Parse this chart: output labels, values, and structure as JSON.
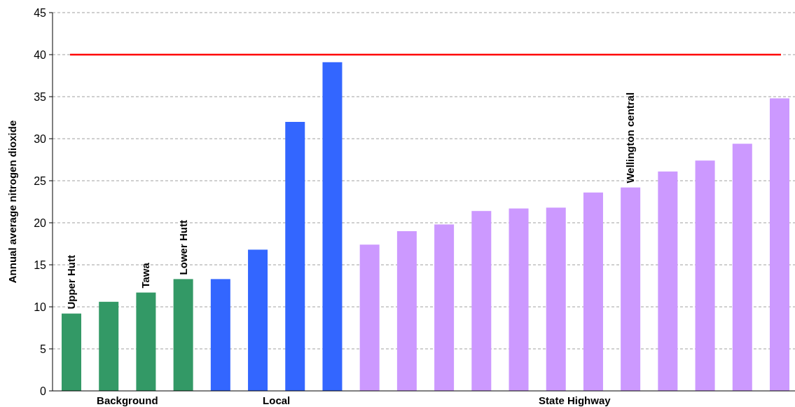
{
  "chart_data": {
    "type": "bar",
    "ylabel": "Annual average nitrogen dioxide",
    "categories": [
      "Upper Hutt",
      null,
      "Tawa",
      "Lower Hutt",
      null,
      null,
      null,
      null,
      null,
      null,
      null,
      null,
      null,
      null,
      null,
      "Wellington central",
      null,
      null,
      null,
      null
    ],
    "values": [
      9.2,
      10.6,
      11.7,
      13.3,
      13.3,
      16.8,
      32,
      39.1,
      17.4,
      19,
      19.8,
      21.4,
      21.7,
      21.8,
      23.6,
      24.2,
      26.1,
      27.4,
      29.4,
      34.8
    ],
    "colors": [
      "#339966",
      "#339966",
      "#339966",
      "#339966",
      "#3366ff",
      "#3366ff",
      "#3366ff",
      "#3366ff",
      "#cc99ff",
      "#cc99ff",
      "#cc99ff",
      "#cc99ff",
      "#cc99ff",
      "#cc99ff",
      "#cc99ff",
      "#cc99ff",
      "#cc99ff",
      "#cc99ff",
      "#cc99ff",
      "#cc99ff"
    ],
    "annotations": [
      "Background",
      "Local",
      "State Highway"
    ],
    "ylim": [
      0,
      45
    ],
    "yticks": [
      0,
      5,
      10,
      15,
      20,
      25,
      30,
      35,
      40,
      45
    ],
    "grid": "y",
    "ref_lines": [
      {
        "axis": "y",
        "value": 40,
        "color": "#ff0000"
      }
    ]
  }
}
